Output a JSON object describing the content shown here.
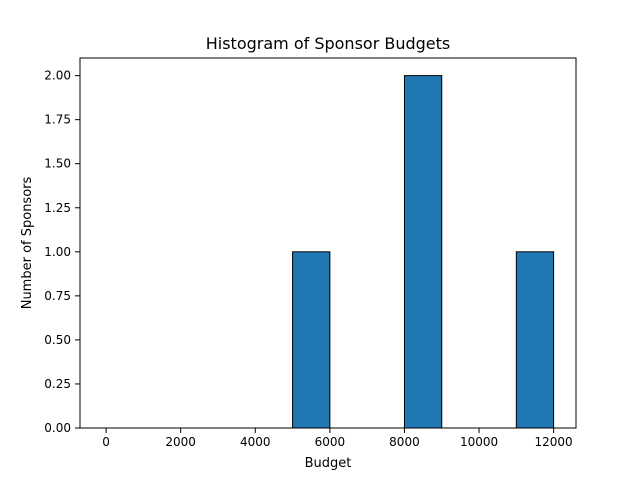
{
  "chart_data": {
    "type": "bar",
    "title": "Histogram of Sponsor Budgets",
    "xlabel": "Budget",
    "ylabel": "Number of Sponsors",
    "xlim": [
      -700,
      12600
    ],
    "ylim": [
      0,
      2.1
    ],
    "x_ticks": [
      0,
      2000,
      4000,
      6000,
      8000,
      10000,
      12000
    ],
    "x_tick_labels": [
      "0",
      "2000",
      "4000",
      "6000",
      "8000",
      "10000",
      "12000"
    ],
    "y_ticks": [
      0.0,
      0.25,
      0.5,
      0.75,
      1.0,
      1.25,
      1.5,
      1.75,
      2.0
    ],
    "y_tick_labels": [
      "0.00",
      "0.25",
      "0.50",
      "0.75",
      "1.00",
      "1.25",
      "1.50",
      "1.75",
      "2.00"
    ],
    "bins": [
      {
        "start": 0,
        "end": 1000,
        "value": 0
      },
      {
        "start": 1000,
        "end": 2000,
        "value": 0
      },
      {
        "start": 2000,
        "end": 3000,
        "value": 0
      },
      {
        "start": 3000,
        "end": 4000,
        "value": 0
      },
      {
        "start": 4000,
        "end": 5000,
        "value": 0
      },
      {
        "start": 5000,
        "end": 6000,
        "value": 1
      },
      {
        "start": 6000,
        "end": 7000,
        "value": 0
      },
      {
        "start": 7000,
        "end": 8000,
        "value": 0
      },
      {
        "start": 8000,
        "end": 9000,
        "value": 2
      },
      {
        "start": 9000,
        "end": 10000,
        "value": 0
      },
      {
        "start": 10000,
        "end": 11000,
        "value": 0
      },
      {
        "start": 11000,
        "end": 12000,
        "value": 1
      }
    ],
    "bar_color": "#1f77b4",
    "edge_color": "#000000",
    "grid": false
  }
}
